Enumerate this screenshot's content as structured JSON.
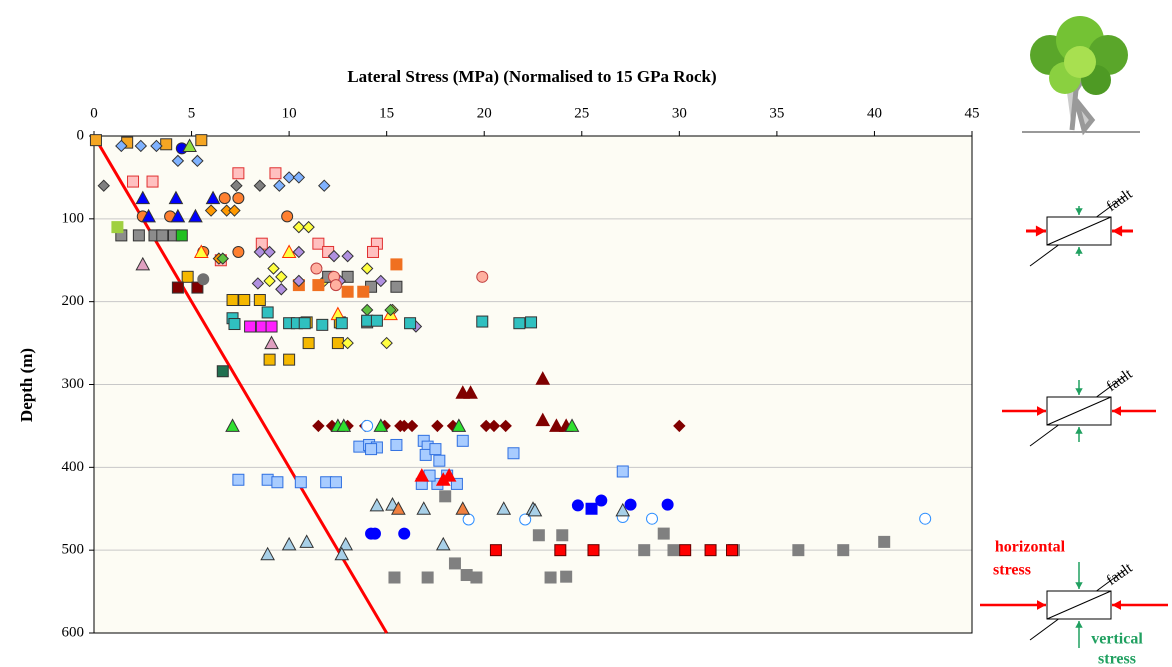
{
  "chart_data": {
    "type": "scatter",
    "title": "Lateral Stress (MPa) (Normalised to 15 GPa Rock)",
    "y_label": "Depth (m)",
    "xlim": [
      0,
      45
    ],
    "xticks": [
      0,
      5,
      10,
      15,
      20,
      25,
      30,
      35,
      40,
      45
    ],
    "ylim": [
      0,
      600
    ],
    "yticks": [
      0,
      100,
      200,
      300,
      400,
      500,
      600
    ],
    "y_inverted": true,
    "x_axis_position": "top",
    "grid": "y",
    "lines": [
      {
        "color": "#ff0000",
        "x": [
          0,
          15
        ],
        "values": [
          0,
          600
        ]
      }
    ],
    "series": [
      {
        "marker": "square",
        "color": "#f5a623",
        "x": [
          0.1,
          1.7,
          3.7,
          5.5
        ],
        "values": [
          5,
          8,
          10,
          5
        ]
      },
      {
        "marker": "square",
        "color": "#f5b800",
        "x": [
          4.8,
          7.1,
          7.7,
          8.5,
          10.9,
          12.5,
          11,
          9,
          10,
          12.6
        ],
        "values": [
          170,
          198,
          198,
          198,
          225,
          250,
          250,
          270,
          270,
          225
        ]
      },
      {
        "marker": "diamond",
        "color": "#7fb2ff",
        "x": [
          1.4,
          2.4,
          3.2,
          4.3,
          5.3,
          9.5,
          10,
          10.5,
          11.8
        ],
        "values": [
          12,
          12,
          12,
          30,
          30,
          60,
          50,
          50,
          60
        ]
      },
      {
        "marker": "diamond",
        "color": "#808080",
        "x": [
          0.5,
          7.3,
          8.5
        ],
        "values": [
          60,
          60,
          60
        ]
      },
      {
        "marker": "circle",
        "color": "#0000ee",
        "x": [
          4.5
        ],
        "values": [
          15
        ]
      },
      {
        "marker": "triangle",
        "color": "#90e040",
        "x": [
          4.9
        ],
        "values": [
          12
        ]
      },
      {
        "marker": "square",
        "color": "#ffc0c0",
        "stroke": "#e03030",
        "x": [
          2,
          3,
          7.4,
          9.3,
          6.5,
          8.6,
          11.5,
          12,
          14.5,
          14.3
        ],
        "values": [
          55,
          55,
          45,
          45,
          150,
          130,
          130,
          140,
          130,
          140
        ]
      },
      {
        "marker": "circle",
        "color": "#ff8030",
        "x": [
          2.5,
          3.9,
          6.7,
          7.4,
          9.9,
          5.6,
          7.4
        ],
        "values": [
          97,
          97,
          75,
          140,
          97,
          140,
          75
        ]
      },
      {
        "marker": "triangle",
        "color": "#0000ff",
        "x": [
          2.5,
          2.8,
          4.2,
          4.3,
          5.2,
          6.1
        ],
        "values": [
          75,
          97,
          75,
          97,
          97,
          75
        ]
      },
      {
        "marker": "diamond",
        "color": "#ff9900",
        "x": [
          6,
          6.8,
          7.2,
          6.4
        ],
        "values": [
          90,
          90,
          90,
          148
        ]
      },
      {
        "marker": "diamond",
        "color": "#ffff40",
        "x": [
          10.5,
          11,
          9.2,
          9,
          14,
          15.3,
          15,
          13,
          11.8,
          10.5,
          9.6
        ],
        "values": [
          110,
          110,
          160,
          175,
          160,
          210,
          250,
          250,
          175,
          175,
          170
        ]
      },
      {
        "marker": "square",
        "color": "#8c8c8c",
        "x": [
          1.4,
          2.3,
          3.1,
          3.5,
          4.1,
          12,
          13,
          14.2,
          15.5,
          14
        ],
        "values": [
          120,
          120,
          120,
          120,
          120,
          170,
          170,
          182,
          182,
          225
        ]
      },
      {
        "marker": "square",
        "color": "#20c020",
        "x": [
          4.5
        ],
        "values": [
          120
        ]
      },
      {
        "marker": "square",
        "color": "#a0d040",
        "stroke": "#a0d040",
        "x": [
          1.2
        ],
        "values": [
          110
        ]
      },
      {
        "marker": "triangle",
        "color": "#e0a0c0",
        "x": [
          2.5,
          9.1
        ],
        "values": [
          155,
          250
        ]
      },
      {
        "marker": "square",
        "color": "#800000",
        "x": [
          4.3,
          5.3
        ],
        "values": [
          183,
          183
        ]
      },
      {
        "marker": "circle",
        "color": "#707070",
        "stroke": "#707070",
        "x": [
          5.6
        ],
        "values": [
          173
        ]
      },
      {
        "marker": "triangle",
        "color": "#ffff40",
        "stroke": "#ff3000",
        "x": [
          5.5,
          10,
          12.5,
          15.2
        ],
        "values": [
          140,
          140,
          215,
          215
        ]
      },
      {
        "marker": "square",
        "color": "#f07020",
        "stroke": "#f07020",
        "x": [
          13,
          13.8,
          15.5,
          10.5,
          11.5
        ],
        "values": [
          188,
          188,
          155,
          180,
          180
        ]
      },
      {
        "marker": "diamond",
        "color": "#b090e0",
        "x": [
          8.5,
          9,
          10.5,
          12.3,
          13,
          12.6,
          10.5,
          14.7,
          16.5,
          8.4,
          9.6
        ],
        "values": [
          140,
          140,
          140,
          145,
          145,
          175,
          175,
          175,
          230,
          178,
          185
        ]
      },
      {
        "marker": "diamond",
        "color": "#60c040",
        "x": [
          6.6,
          14,
          15.2
        ],
        "values": [
          148,
          210,
          210
        ]
      },
      {
        "marker": "circle",
        "color": "#ffb0a0",
        "stroke": "#c04040",
        "x": [
          11.4,
          12.3,
          12.4,
          19.9
        ],
        "values": [
          160,
          170,
          180,
          170
        ]
      },
      {
        "marker": "square",
        "color": "#ff20ff",
        "x": [
          8,
          8.6,
          9.1
        ],
        "values": [
          230,
          230,
          230
        ]
      },
      {
        "marker": "square",
        "color": "#30c0c0",
        "x": [
          7.1,
          7.2,
          8.9,
          10,
          10.4,
          10.8,
          11.7,
          12.7,
          14,
          14.5,
          16.2,
          19.9,
          21.8,
          22.4
        ],
        "values": [
          220,
          227,
          213,
          226,
          226,
          226,
          228,
          226,
          223,
          223,
          226,
          224,
          226,
          225
        ]
      },
      {
        "marker": "square",
        "color": "#207050",
        "x": [
          6.6
        ],
        "values": [
          284
        ]
      },
      {
        "marker": "triangle",
        "color": "#800000",
        "stroke": "#800000",
        "x": [
          18.9,
          19.3,
          23,
          23,
          23.7,
          24.2
        ],
        "values": [
          310,
          310,
          293,
          343,
          350,
          350
        ]
      },
      {
        "marker": "diamond",
        "color": "#800000",
        "stroke": "#800000",
        "x": [
          11.5,
          12.2,
          13,
          13.9,
          14.9,
          15.7,
          15.9,
          16.3,
          17.6,
          18.4,
          20.1,
          20.5,
          21.1,
          30
        ],
        "values": [
          350,
          350,
          350,
          350,
          350,
          350,
          350,
          350,
          350,
          350,
          350,
          350,
          350,
          350
        ]
      },
      {
        "marker": "triangle",
        "color": "#30e030",
        "x": [
          7.1,
          12.5,
          12.8,
          14.7,
          18.7,
          24.5
        ],
        "values": [
          350,
          350,
          350,
          350,
          350,
          350
        ]
      },
      {
        "marker": "square",
        "color": "#a8ccff",
        "stroke": "#3070e0",
        "x": [
          7.4,
          8.9,
          9.4,
          10.6,
          11.9,
          12.4,
          13.6,
          14.1,
          14.5,
          14.2,
          15.5,
          16.9,
          17.1,
          17,
          17.5,
          17.7,
          18.9,
          21.5,
          16.8,
          17.6,
          18.1,
          18.6,
          27.1,
          17.2
        ],
        "values": [
          415,
          415,
          418,
          418,
          418,
          418,
          375,
          373,
          376,
          378,
          373,
          368,
          375,
          385,
          378,
          392,
          368,
          383,
          420,
          420,
          410,
          420,
          405,
          410
        ]
      },
      {
        "marker": "circle",
        "color": "#ffffff",
        "stroke": "#3090ff",
        "x": [
          14,
          19.2,
          22.1,
          27.1,
          28.6,
          42.6
        ],
        "values": [
          350,
          463,
          463,
          460,
          462,
          462
        ]
      },
      {
        "marker": "triangle",
        "color": "#ff0000",
        "stroke": "#ff0000",
        "x": [
          16.8,
          18.2,
          17.9
        ],
        "values": [
          410,
          410,
          415
        ]
      },
      {
        "marker": "triangle",
        "color": "#a8d0e8",
        "x": [
          14.5,
          15.3,
          16.9,
          21,
          22.5,
          22.6,
          27.1,
          8.9,
          10,
          10.9,
          12.9,
          12.7,
          17.9
        ],
        "values": [
          446,
          445,
          450,
          450,
          450,
          452,
          452,
          505,
          493,
          490,
          493,
          505,
          493
        ]
      },
      {
        "marker": "triangle",
        "color": "#f08040",
        "x": [
          15.6,
          18.9
        ],
        "values": [
          450,
          450
        ]
      },
      {
        "marker": "circle",
        "color": "#0000ff",
        "stroke": "#0000ff",
        "x": [
          24.8,
          26,
          27.5,
          29.4,
          14.2,
          14.4,
          15.9
        ],
        "values": [
          446,
          440,
          445,
          445,
          480,
          480,
          480
        ]
      },
      {
        "marker": "square",
        "color": "#0000ff",
        "stroke": "#0000ff",
        "x": [
          25.5
        ],
        "values": [
          450
        ]
      },
      {
        "marker": "square",
        "color": "#808080",
        "stroke": "#808080",
        "x": [
          18,
          22.8,
          24,
          23.4,
          24.2,
          19.1,
          19.6,
          18.5,
          15.4,
          17.1,
          28.2,
          29.2,
          29.7,
          32.8,
          36.1,
          38.4,
          40.5
        ],
        "values": [
          435,
          482,
          482,
          533,
          532,
          530,
          533,
          516,
          533,
          533,
          500,
          480,
          500,
          500,
          500,
          500,
          490
        ]
      },
      {
        "marker": "square",
        "color": "#ff0000",
        "stroke": "#600000",
        "x": [
          20.6,
          23.9,
          25.6,
          30.3,
          31.6,
          32.7
        ],
        "values": [
          500,
          500,
          500,
          500,
          500,
          500
        ]
      }
    ]
  },
  "diagrams": [
    {
      "fault": "fault"
    },
    {
      "fault": "fault"
    },
    {
      "fault": "fault",
      "horizontal_label": [
        "horizontal",
        "stress"
      ],
      "vertical_label": [
        "vertical",
        "stress"
      ]
    }
  ]
}
